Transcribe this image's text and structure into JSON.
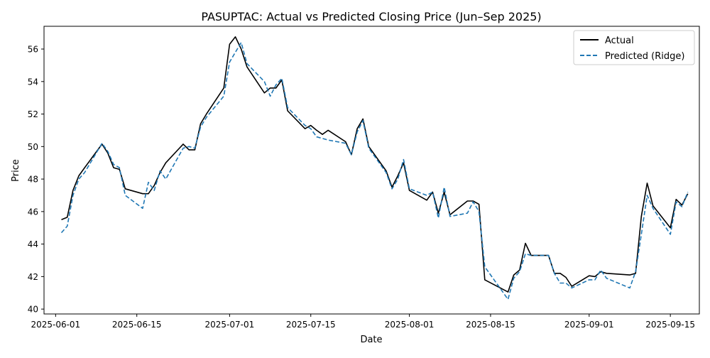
{
  "chart_data": {
    "type": "line",
    "title": "PASUPTAC: Actual vs Predicted Closing Price (Jun–Sep 2025)",
    "xlabel": "Date",
    "ylabel": "Price",
    "x_ticks": [
      "2025-06-01",
      "2025-06-15",
      "2025-07-01",
      "2025-07-15",
      "2025-08-01",
      "2025-08-15",
      "2025-09-01",
      "2025-09-15"
    ],
    "y_ticks": [
      40,
      42,
      44,
      46,
      48,
      50,
      52,
      54,
      56
    ],
    "xlim": [
      "2025-05-30",
      "2025-09-20"
    ],
    "ylim": [
      39.7,
      57.4
    ],
    "grid": false,
    "legend_position": "top-right",
    "series": [
      {
        "name": "Actual",
        "color": "#000000",
        "style": "solid",
        "x": [
          "2025-06-02",
          "2025-06-03",
          "2025-06-04",
          "2025-06-05",
          "2025-06-06",
          "2025-06-09",
          "2025-06-10",
          "2025-06-11",
          "2025-06-12",
          "2025-06-13",
          "2025-06-16",
          "2025-06-17",
          "2025-06-18",
          "2025-06-19",
          "2025-06-20",
          "2025-06-23",
          "2025-06-24",
          "2025-06-25",
          "2025-06-26",
          "2025-06-27",
          "2025-06-30",
          "2025-07-01",
          "2025-07-02",
          "2025-07-03",
          "2025-07-04",
          "2025-07-07",
          "2025-07-08",
          "2025-07-09",
          "2025-07-10",
          "2025-07-11",
          "2025-07-14",
          "2025-07-15",
          "2025-07-16",
          "2025-07-17",
          "2025-07-18",
          "2025-07-21",
          "2025-07-22",
          "2025-07-23",
          "2025-07-24",
          "2025-07-25",
          "2025-07-28",
          "2025-07-29",
          "2025-07-30",
          "2025-07-31",
          "2025-08-01",
          "2025-08-04",
          "2025-08-05",
          "2025-08-06",
          "2025-08-07",
          "2025-08-08",
          "2025-08-11",
          "2025-08-12",
          "2025-08-13",
          "2025-08-14",
          "2025-08-18",
          "2025-08-19",
          "2025-08-20",
          "2025-08-21",
          "2025-08-22",
          "2025-08-25",
          "2025-08-26",
          "2025-08-27",
          "2025-08-28",
          "2025-08-29",
          "2025-09-01",
          "2025-09-02",
          "2025-09-03",
          "2025-09-04",
          "2025-09-08",
          "2025-09-09",
          "2025-09-10",
          "2025-09-11",
          "2025-09-12",
          "2025-09-15",
          "2025-09-16",
          "2025-09-17",
          "2025-09-18"
        ],
        "y": [
          45.5,
          45.65,
          47.3,
          48.2,
          48.7,
          50.15,
          49.6,
          48.7,
          48.6,
          47.4,
          47.1,
          47.1,
          47.6,
          48.4,
          49.0,
          50.15,
          49.8,
          49.8,
          51.4,
          52.0,
          53.6,
          56.3,
          56.75,
          56.0,
          54.9,
          53.3,
          53.6,
          53.6,
          54.1,
          52.2,
          51.1,
          51.3,
          51.0,
          50.75,
          51.0,
          50.3,
          49.5,
          51.1,
          51.7,
          50.0,
          48.5,
          47.5,
          48.2,
          49.0,
          47.3,
          46.7,
          47.2,
          45.9,
          47.2,
          45.8,
          46.65,
          46.65,
          46.45,
          41.8,
          41.05,
          42.1,
          42.4,
          44.05,
          43.3,
          43.3,
          42.2,
          42.2,
          41.95,
          41.4,
          42.05,
          42.0,
          42.3,
          42.2,
          42.1,
          42.2,
          45.7,
          47.75,
          46.35,
          45.0,
          46.75,
          46.4,
          47.1
        ]
      },
      {
        "name": "Predicted (Ridge)",
        "color": "#1f77b4",
        "style": "dashed",
        "x": [
          "2025-06-02",
          "2025-06-03",
          "2025-06-04",
          "2025-06-05",
          "2025-06-06",
          "2025-06-09",
          "2025-06-10",
          "2025-06-11",
          "2025-06-12",
          "2025-06-13",
          "2025-06-16",
          "2025-06-17",
          "2025-06-18",
          "2025-06-19",
          "2025-06-20",
          "2025-06-23",
          "2025-06-24",
          "2025-06-25",
          "2025-06-26",
          "2025-06-27",
          "2025-06-30",
          "2025-07-01",
          "2025-07-02",
          "2025-07-03",
          "2025-07-04",
          "2025-07-07",
          "2025-07-08",
          "2025-07-09",
          "2025-07-10",
          "2025-07-11",
          "2025-07-14",
          "2025-07-15",
          "2025-07-16",
          "2025-07-17",
          "2025-07-18",
          "2025-07-21",
          "2025-07-22",
          "2025-07-23",
          "2025-07-24",
          "2025-07-25",
          "2025-07-28",
          "2025-07-29",
          "2025-07-30",
          "2025-07-31",
          "2025-08-01",
          "2025-08-04",
          "2025-08-05",
          "2025-08-06",
          "2025-08-07",
          "2025-08-08",
          "2025-08-11",
          "2025-08-12",
          "2025-08-13",
          "2025-08-14",
          "2025-08-18",
          "2025-08-19",
          "2025-08-20",
          "2025-08-21",
          "2025-08-22",
          "2025-08-25",
          "2025-08-26",
          "2025-08-27",
          "2025-08-28",
          "2025-08-29",
          "2025-09-01",
          "2025-09-02",
          "2025-09-03",
          "2025-09-04",
          "2025-09-08",
          "2025-09-09",
          "2025-09-10",
          "2025-09-11",
          "2025-09-12",
          "2025-09-15",
          "2025-09-16",
          "2025-09-17",
          "2025-09-18"
        ],
        "y": [
          44.7,
          45.1,
          47.0,
          48.0,
          48.4,
          50.2,
          49.7,
          48.9,
          48.7,
          47.0,
          46.2,
          47.8,
          47.3,
          48.5,
          48.0,
          49.9,
          50.0,
          49.9,
          51.2,
          51.8,
          53.1,
          55.2,
          55.8,
          56.4,
          55.1,
          54.0,
          53.1,
          53.8,
          54.2,
          52.4,
          51.3,
          51.1,
          50.6,
          50.5,
          50.4,
          50.2,
          49.5,
          50.9,
          51.6,
          49.9,
          48.4,
          47.4,
          48.0,
          49.2,
          47.4,
          47.0,
          47.2,
          45.6,
          47.5,
          45.7,
          45.9,
          46.6,
          46.0,
          42.6,
          40.6,
          41.9,
          42.3,
          43.4,
          43.3,
          43.3,
          42.2,
          41.6,
          41.6,
          41.3,
          41.8,
          41.8,
          42.4,
          41.9,
          41.3,
          42.3,
          44.6,
          47.0,
          46.2,
          44.6,
          46.6,
          46.3,
          47.2
        ]
      }
    ]
  }
}
